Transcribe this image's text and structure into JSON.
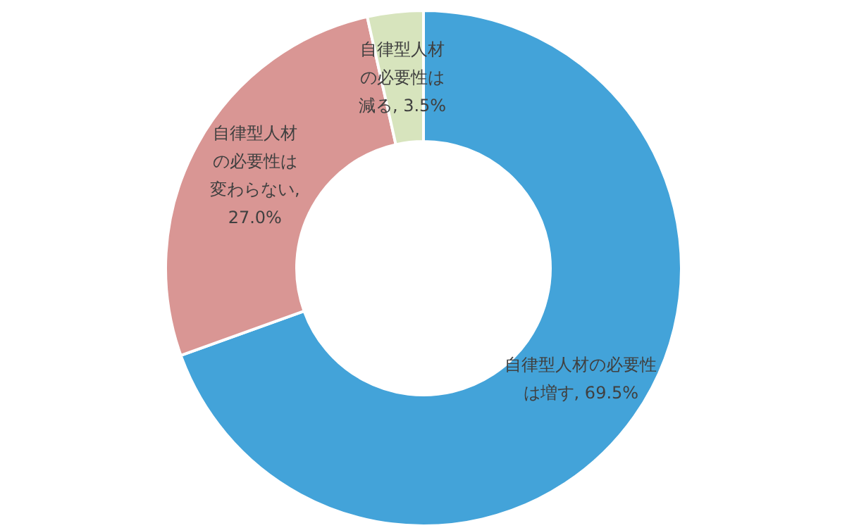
{
  "chart_data": {
    "type": "donut",
    "categories": [
      "自律型人材の必要性は増す",
      "自律型人材の必要性は変わらない",
      "自律型人材の必要性は減る"
    ],
    "values": [
      69.5,
      27.0,
      3.5
    ],
    "colors": [
      "#43a3d9",
      "#d99694",
      "#d7e4bd"
    ],
    "value_labels": [
      ", 69.5%",
      ", 27.0%",
      ", 3.5%"
    ],
    "legend": false
  }
}
